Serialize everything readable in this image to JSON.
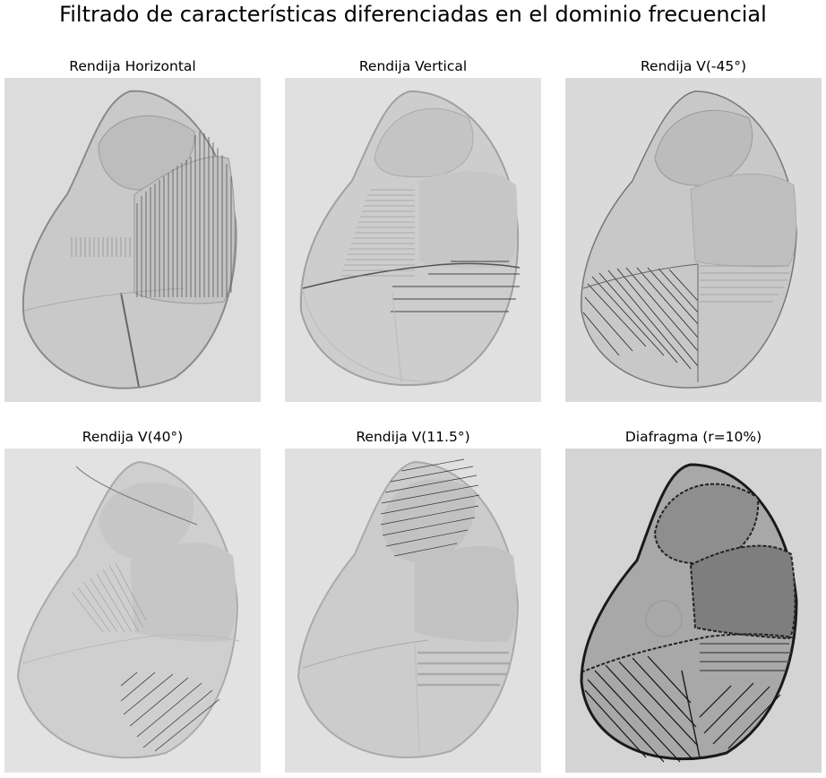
{
  "figure": {
    "title": "Filtrado de características diferenciadas en el dominio frecuencial",
    "panels": [
      {
        "title": "Rendija Horizontal",
        "background": "#dcdcdc"
      },
      {
        "title": "Rendija Vertical",
        "background": "#e0e0e0"
      },
      {
        "title": "Rendija V(-45°)",
        "background": "#dadada"
      },
      {
        "title": "Rendija V(40°)",
        "background": "#e2e2e2"
      },
      {
        "title": "Rendija V(11.5°)",
        "background": "#e0e0e0"
      },
      {
        "title": "Diafragma (r=10%)",
        "background": "#d4d4d4"
      }
    ]
  }
}
